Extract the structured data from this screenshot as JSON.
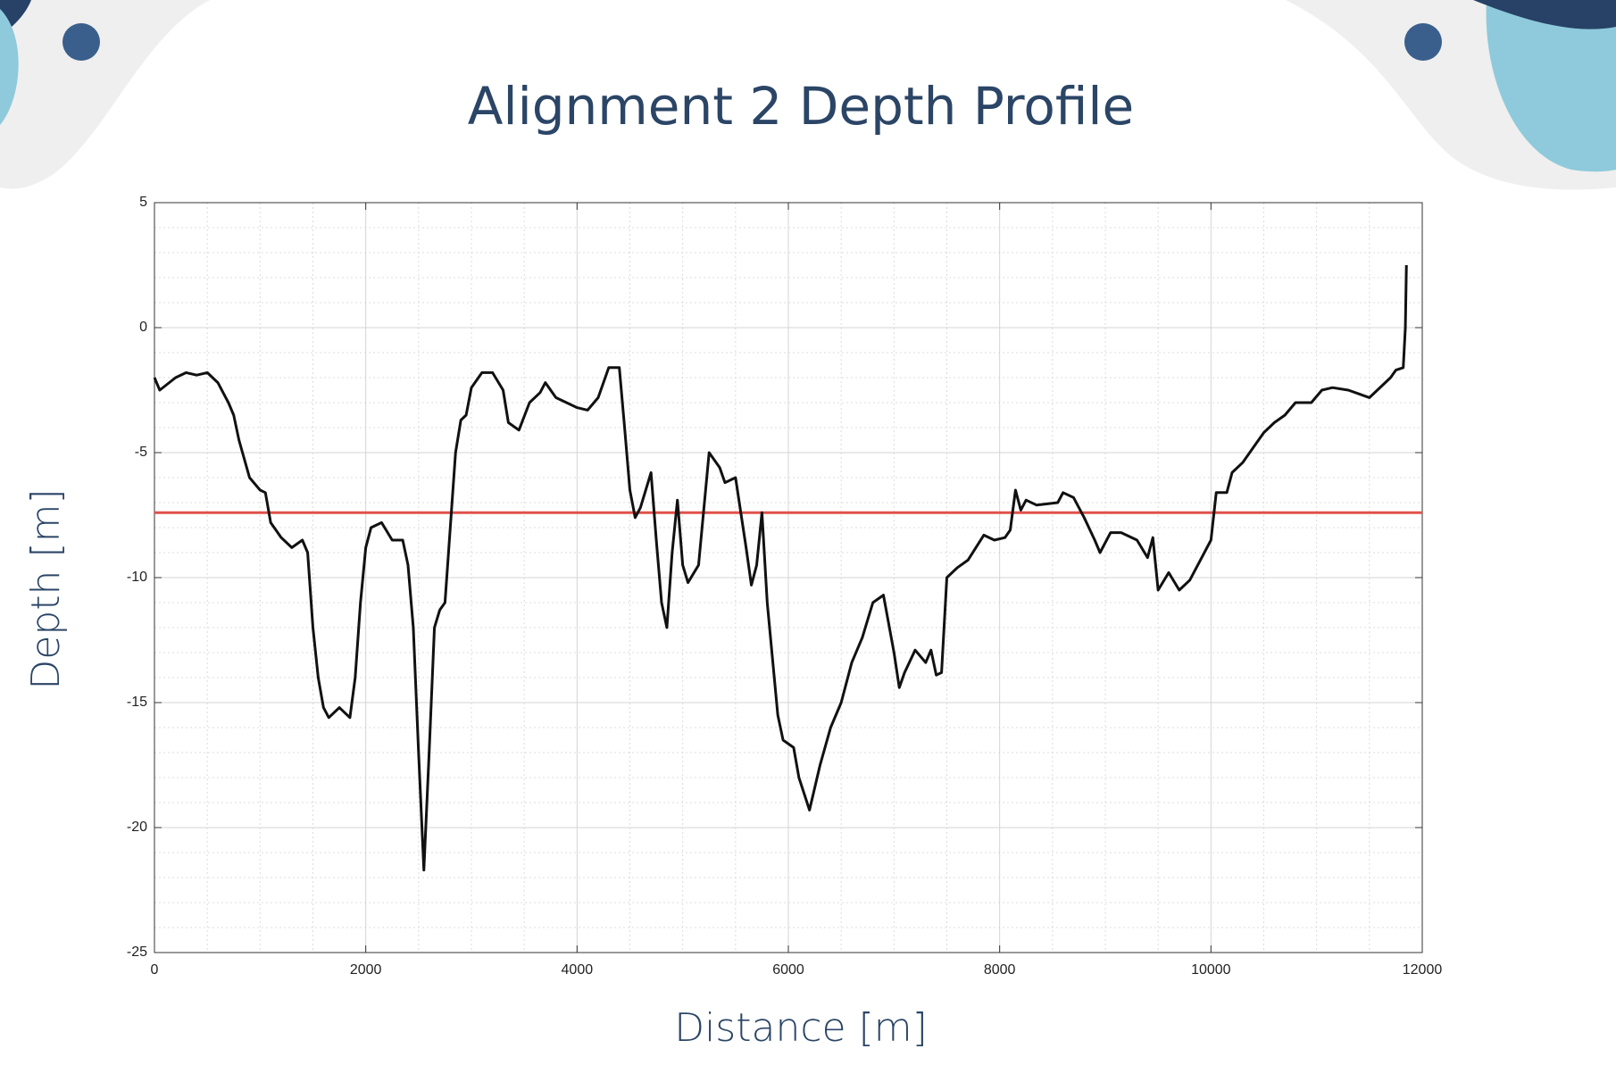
{
  "chart_data": {
    "type": "line",
    "title": "Alignment 2 Depth Profile",
    "x_label": "Distance [m]",
    "y_label": "Depth [m]",
    "x": [
      0,
      50,
      200,
      300,
      400,
      500,
      600,
      700,
      750,
      800,
      900,
      1000,
      1050,
      1100,
      1200,
      1300,
      1400,
      1450,
      1500,
      1550,
      1600,
      1650,
      1750,
      1850,
      1900,
      1950,
      2000,
      2050,
      2150,
      2250,
      2350,
      2400,
      2450,
      2500,
      2550,
      2600,
      2650,
      2700,
      2750,
      2800,
      2850,
      2900,
      2950,
      3000,
      3100,
      3200,
      3300,
      3350,
      3450,
      3550,
      3650,
      3700,
      3800,
      3900,
      4000,
      4100,
      4200,
      4300,
      4400,
      4450,
      4500,
      4550,
      4600,
      4700,
      4750,
      4800,
      4850,
      4900,
      4950,
      5000,
      5050,
      5150,
      5250,
      5350,
      5400,
      5500,
      5600,
      5650,
      5700,
      5750,
      5800,
      5900,
      5950,
      6050,
      6100,
      6200,
      6300,
      6400,
      6500,
      6600,
      6700,
      6800,
      6900,
      7000,
      7050,
      7100,
      7200,
      7300,
      7350,
      7400,
      7450,
      7500,
      7600,
      7700,
      7850,
      7950,
      8050,
      8100,
      8150,
      8200,
      8250,
      8350,
      8550,
      8600,
      8700,
      8800,
      8900,
      8950,
      9050,
      9150,
      9300,
      9400,
      9450,
      9500,
      9600,
      9700,
      9800,
      9900,
      10000,
      10050,
      10150,
      10200,
      10300,
      10400,
      10500,
      10600,
      10700,
      10800,
      10950,
      11050,
      11150,
      11300,
      11500,
      11700,
      11750,
      11820,
      11840,
      11850
    ],
    "series": [
      {
        "color": "#111111",
        "values": [
          -2.0,
          -2.5,
          -2.0,
          -1.8,
          -1.9,
          -1.8,
          -2.2,
          -3.0,
          -3.5,
          -4.5,
          -6.0,
          -6.5,
          -6.6,
          -7.8,
          -8.4,
          -8.8,
          -8.5,
          -9.0,
          -12.0,
          -14.0,
          -15.2,
          -15.6,
          -15.2,
          -15.6,
          -14.0,
          -11.0,
          -8.8,
          -8.0,
          -7.8,
          -8.5,
          -8.5,
          -9.5,
          -12.0,
          -17.0,
          -21.7,
          -17.0,
          -12.0,
          -11.3,
          -11.0,
          -8.0,
          -5.0,
          -3.7,
          -3.5,
          -2.4,
          -1.8,
          -1.8,
          -2.5,
          -3.8,
          -4.1,
          -3.0,
          -2.6,
          -2.2,
          -2.8,
          -3.0,
          -3.2,
          -3.3,
          -2.8,
          -1.6,
          -1.6,
          -4.0,
          -6.5,
          -7.6,
          -7.2,
          -5.8,
          -8.5,
          -11.0,
          -12.0,
          -9.0,
          -6.9,
          -9.5,
          -10.2,
          -9.5,
          -5.0,
          -5.6,
          -6.2,
          -6.0,
          -8.8,
          -10.3,
          -9.5,
          -7.4,
          -11.0,
          -15.5,
          -16.5,
          -16.8,
          -18.0,
          -19.3,
          -17.5,
          -16.0,
          -15.0,
          -13.4,
          -12.4,
          -11.0,
          -10.7,
          -13.0,
          -14.4,
          -13.8,
          -12.9,
          -13.4,
          -12.9,
          -13.9,
          -13.8,
          -10.0,
          -9.6,
          -9.3,
          -8.3,
          -8.5,
          -8.4,
          -8.1,
          -6.5,
          -7.3,
          -6.9,
          -7.1,
          -7.0,
          -6.6,
          -6.8,
          -7.6,
          -8.5,
          -9.0,
          -8.2,
          -8.2,
          -8.5,
          -9.2,
          -8.4,
          -10.5,
          -9.8,
          -10.5,
          -10.1,
          -9.3,
          -8.5,
          -6.6,
          -6.6,
          -5.8,
          -5.4,
          -4.8,
          -4.2,
          -3.8,
          -3.5,
          -3.0,
          -3.0,
          -2.5,
          -2.4,
          -2.5,
          -2.8,
          -2.0,
          -1.7,
          -1.6,
          0.0,
          2.5
        ]
      }
    ],
    "reference_line": {
      "value": -7.4,
      "color": "#e0524a"
    },
    "xlim": [
      0,
      12000
    ],
    "ylim": [
      -25,
      5
    ],
    "xticks": [
      0,
      2000,
      4000,
      6000,
      8000,
      10000,
      12000
    ],
    "yticks": [
      -25,
      -20,
      -15,
      -10,
      -5,
      0,
      5
    ],
    "grid": true,
    "minor_grid": true
  }
}
